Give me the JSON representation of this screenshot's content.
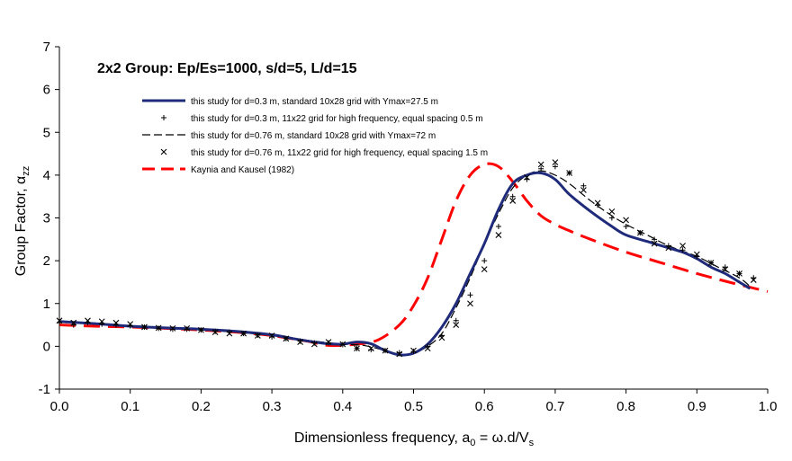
{
  "chart_data": {
    "type": "line",
    "title": "2x2 Group: Ep/Es=1000, s/d=5, L/d=15",
    "xlabel": "Dimensionless frequency, a",
    "xlabel_sub": "0",
    "xlabel_rest": " =  ω.d/V",
    "xlabel_sub2": "s",
    "ylabel": "Group Factor, α",
    "ylabel_sub": "zz",
    "xlim": [
      0.0,
      1.0
    ],
    "ylim": [
      -1,
      7
    ],
    "xticks": [
      "0.0",
      "0.1",
      "0.2",
      "0.3",
      "0.4",
      "0.5",
      "0.6",
      "0.7",
      "0.8",
      "0.9",
      "1.0"
    ],
    "yticks": [
      "-1",
      "0",
      "1",
      "2",
      "3",
      "4",
      "5",
      "6",
      "7"
    ],
    "grid": false,
    "legend_position": "top-left",
    "series": [
      {
        "name": "this study for d=0.3 m, standard 10x28 grid with Ymax=27.5 m",
        "style": "solid-thick",
        "color": "#1f2b7a",
        "x": [
          0.0,
          0.05,
          0.1,
          0.15,
          0.2,
          0.25,
          0.3,
          0.33,
          0.36,
          0.38,
          0.4,
          0.42,
          0.44,
          0.46,
          0.48,
          0.5,
          0.52,
          0.54,
          0.56,
          0.58,
          0.6,
          0.62,
          0.64,
          0.66,
          0.68,
          0.7,
          0.72,
          0.75,
          0.78,
          0.8,
          0.83,
          0.86,
          0.88,
          0.9,
          0.92,
          0.94,
          0.96,
          0.975
        ],
        "y": [
          0.58,
          0.53,
          0.47,
          0.43,
          0.4,
          0.35,
          0.27,
          0.18,
          0.1,
          0.06,
          0.05,
          0.1,
          0.06,
          -0.1,
          -0.2,
          -0.16,
          0.05,
          0.45,
          1.0,
          1.7,
          2.4,
          3.2,
          3.8,
          4.0,
          4.05,
          3.9,
          3.55,
          3.15,
          2.8,
          2.6,
          2.45,
          2.3,
          2.2,
          2.05,
          1.85,
          1.7,
          1.5,
          1.35
        ]
      },
      {
        "name": "this study for d=0.3 m, 11x22 grid for high frequency, equal spacing 0.5 m",
        "style": "plus-markers",
        "color": "#000000",
        "x": [
          0.0,
          0.02,
          0.04,
          0.06,
          0.08,
          0.1,
          0.12,
          0.14,
          0.16,
          0.18,
          0.2,
          0.22,
          0.24,
          0.26,
          0.28,
          0.3,
          0.32,
          0.34,
          0.36,
          0.38,
          0.4,
          0.42,
          0.44,
          0.46,
          0.48,
          0.5,
          0.52,
          0.54,
          0.56,
          0.58,
          0.6,
          0.62,
          0.64,
          0.66,
          0.68,
          0.7,
          0.72,
          0.74,
          0.76,
          0.78,
          0.8,
          0.82,
          0.84,
          0.86,
          0.88,
          0.9,
          0.92,
          0.94,
          0.96,
          0.98
        ],
        "y": [
          0.55,
          0.5,
          0.55,
          0.52,
          0.5,
          0.48,
          0.45,
          0.42,
          0.4,
          0.4,
          0.38,
          0.35,
          0.33,
          0.3,
          0.26,
          0.22,
          0.18,
          0.12,
          0.08,
          0.08,
          0.04,
          -0.05,
          -0.08,
          -0.1,
          -0.15,
          -0.12,
          0.0,
          0.25,
          0.6,
          1.2,
          2.0,
          2.8,
          3.5,
          3.9,
          4.15,
          4.2,
          4.05,
          3.75,
          3.3,
          3.0,
          2.8,
          2.65,
          2.5,
          2.35,
          2.25,
          2.1,
          1.95,
          1.85,
          1.7,
          1.6
        ]
      },
      {
        "name": "this study for d=0.76 m, standard 10x28 grid with Ymax=72 m",
        "style": "dashed-thin",
        "color": "#000000",
        "x": [
          0.0,
          0.05,
          0.1,
          0.15,
          0.2,
          0.25,
          0.3,
          0.35,
          0.4,
          0.43,
          0.46,
          0.48,
          0.5,
          0.52,
          0.54,
          0.56,
          0.58,
          0.6,
          0.62,
          0.64,
          0.66,
          0.68,
          0.7,
          0.72,
          0.75,
          0.78,
          0.8,
          0.83,
          0.86,
          0.9,
          0.93,
          0.96,
          0.975
        ],
        "y": [
          0.56,
          0.52,
          0.47,
          0.43,
          0.38,
          0.33,
          0.25,
          0.14,
          0.05,
          0.02,
          -0.1,
          -0.2,
          -0.15,
          0.0,
          0.3,
          0.9,
          1.6,
          2.4,
          3.1,
          3.7,
          4.0,
          4.1,
          4.0,
          3.8,
          3.4,
          3.05,
          2.85,
          2.6,
          2.35,
          2.1,
          1.85,
          1.6,
          1.4
        ]
      },
      {
        "name": "this study for d=0.76 m, 11x22 grid for high frequency, equal spacing 1.5 m",
        "style": "x-markers",
        "color": "#000000",
        "x": [
          0.0,
          0.02,
          0.04,
          0.06,
          0.08,
          0.1,
          0.12,
          0.14,
          0.16,
          0.18,
          0.2,
          0.22,
          0.24,
          0.26,
          0.28,
          0.3,
          0.32,
          0.34,
          0.36,
          0.38,
          0.4,
          0.42,
          0.44,
          0.46,
          0.48,
          0.5,
          0.52,
          0.54,
          0.56,
          0.58,
          0.6,
          0.62,
          0.64,
          0.66,
          0.68,
          0.7,
          0.72,
          0.74,
          0.76,
          0.78,
          0.8,
          0.82,
          0.84,
          0.86,
          0.88,
          0.9,
          0.92,
          0.94,
          0.96,
          0.98
        ],
        "y": [
          0.6,
          0.55,
          0.6,
          0.58,
          0.55,
          0.52,
          0.45,
          0.43,
          0.42,
          0.42,
          0.38,
          0.33,
          0.3,
          0.3,
          0.25,
          0.25,
          0.18,
          0.1,
          0.05,
          0.1,
          0.05,
          -0.05,
          -0.05,
          -0.1,
          -0.18,
          -0.1,
          -0.05,
          0.2,
          0.5,
          1.0,
          1.8,
          2.6,
          3.4,
          3.95,
          4.25,
          4.3,
          4.05,
          3.65,
          3.35,
          3.15,
          2.95,
          2.65,
          2.4,
          2.3,
          2.35,
          2.15,
          1.95,
          1.8,
          1.7,
          1.55
        ]
      },
      {
        "name": "Kaynia and Kausel (1982)",
        "style": "dashed-thick",
        "color": "#ff0000",
        "x": [
          0.0,
          0.05,
          0.1,
          0.15,
          0.2,
          0.25,
          0.3,
          0.35,
          0.38,
          0.42,
          0.45,
          0.48,
          0.5,
          0.52,
          0.54,
          0.56,
          0.58,
          0.6,
          0.62,
          0.64,
          0.66,
          0.68,
          0.7,
          0.72,
          0.75,
          0.8,
          0.85,
          0.9,
          0.95,
          1.0
        ],
        "y": [
          0.5,
          0.47,
          0.45,
          0.42,
          0.38,
          0.33,
          0.25,
          0.12,
          0.02,
          0.05,
          0.15,
          0.5,
          0.95,
          1.6,
          2.5,
          3.4,
          4.0,
          4.25,
          4.2,
          3.85,
          3.4,
          3.05,
          2.85,
          2.7,
          2.5,
          2.2,
          1.95,
          1.7,
          1.48,
          1.28
        ]
      }
    ]
  }
}
